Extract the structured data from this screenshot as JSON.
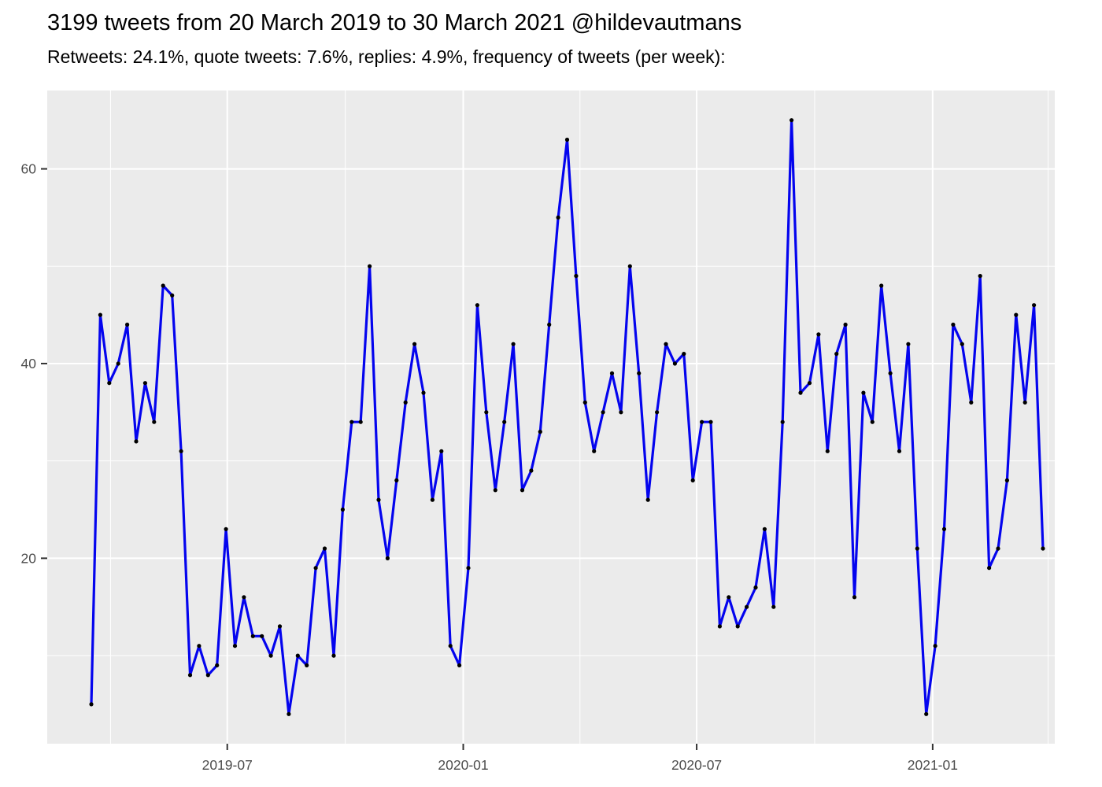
{
  "header": {
    "title": "3199 tweets from 20 March 2019 to 30 March 2021 @hildevautmans",
    "subtitle": "Retweets: 24.1%, quote tweets: 7.6%, replies: 4.9%, frequency of tweets (per week):"
  },
  "chart_data": {
    "type": "line",
    "series_name": "tweet frequency per week",
    "x_start_date": "2019-03-17",
    "x_step_days": 7,
    "values": [
      5,
      45,
      38,
      40,
      44,
      32,
      38,
      34,
      48,
      47,
      31,
      8,
      11,
      8,
      9,
      23,
      11,
      16,
      12,
      12,
      10,
      13,
      4,
      10,
      9,
      19,
      21,
      10,
      25,
      34,
      34,
      50,
      26,
      20,
      28,
      36,
      42,
      37,
      26,
      31,
      11,
      9,
      19,
      46,
      35,
      27,
      34,
      42,
      27,
      29,
      33,
      44,
      55,
      63,
      49,
      36,
      31,
      35,
      39,
      35,
      50,
      39,
      26,
      35,
      42,
      40,
      41,
      28,
      34,
      34,
      13,
      16,
      13,
      15,
      17,
      23,
      15,
      34,
      65,
      37,
      38,
      43,
      31,
      41,
      44,
      16,
      37,
      34,
      48,
      39,
      31,
      42,
      21,
      4,
      11,
      23,
      44,
      42,
      36,
      49,
      19,
      21,
      28,
      45,
      36,
      46,
      21
    ],
    "x_tick_dates": [
      "2019-07-01",
      "2020-01-01",
      "2020-07-01",
      "2021-01-01"
    ],
    "x_tick_labels": [
      "2019-07",
      "2020-01",
      "2020-07",
      "2021-01"
    ],
    "x_minor_dates": [
      "2019-04-01",
      "2019-10-01",
      "2020-04-01",
      "2020-10-01",
      "2021-04-01"
    ],
    "y_ticks": [
      20,
      40,
      60
    ],
    "y_tick_labels": [
      "20",
      "40",
      "60"
    ],
    "y_minor": [
      10,
      30,
      50
    ],
    "ylim": [
      0.95,
      68.05
    ],
    "xlabel": "",
    "ylabel": "",
    "grid": true,
    "legend": "none",
    "colors": {
      "line": "#0404EE",
      "point": "#000000",
      "panel_bg": "#EBEBEB",
      "grid_major": "#FFFFFF",
      "grid_minor": "#FFFFFF",
      "tick_text": "#4D4D4D",
      "tick_mark": "#333333",
      "title_text": "#000000"
    }
  }
}
